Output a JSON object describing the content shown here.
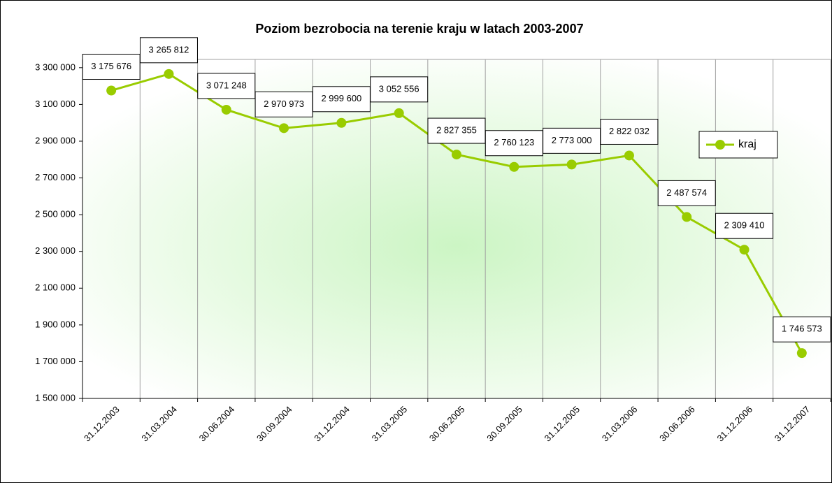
{
  "chart_data": {
    "type": "line",
    "title": "Poziom bezrobocia na terenie kraju w latach 2003-2007",
    "categories": [
      "31.12.2003",
      "31.03.2004",
      "30.06.2004",
      "30.09.2004",
      "31.12.2004",
      "31.03.2005",
      "30.06.2005",
      "30.09.2005",
      "31.12.2005",
      "31.03.2006",
      "30.06.2006",
      "31.12.2006",
      "31.12.2007"
    ],
    "series": [
      {
        "name": "kraj",
        "color": "#99cc00",
        "values": [
          3175676,
          3265812,
          3071248,
          2970973,
          2999600,
          3052556,
          2827355,
          2760123,
          2773000,
          2822032,
          2487574,
          2309410,
          1746573
        ],
        "value_labels": [
          "3 175 676",
          "3 265 812",
          "3 071 248",
          "2 970 973",
          "2 999 600",
          "3 052 556",
          "2 827 355",
          "2 760 123",
          "2 773 000",
          "2 822 032",
          "2 487 574",
          "2 309 410",
          "1 746 573"
        ]
      }
    ],
    "ylim": [
      1500000,
      3345000
    ],
    "yticks": [
      {
        "value": 1500000,
        "label": "1 500 000"
      },
      {
        "value": 1700000,
        "label": "1 700 000"
      },
      {
        "value": 1900000,
        "label": "1 900 000"
      },
      {
        "value": 2100000,
        "label": "2 100 000"
      },
      {
        "value": 2300000,
        "label": "2 300 000"
      },
      {
        "value": 2500000,
        "label": "2 500 000"
      },
      {
        "value": 2700000,
        "label": "2 700 000"
      },
      {
        "value": 2900000,
        "label": "2 900 000"
      },
      {
        "value": 3100000,
        "label": "3 100 000"
      },
      {
        "value": 3300000,
        "label": "3 300 000"
      }
    ],
    "grid": true,
    "legend": "right"
  }
}
